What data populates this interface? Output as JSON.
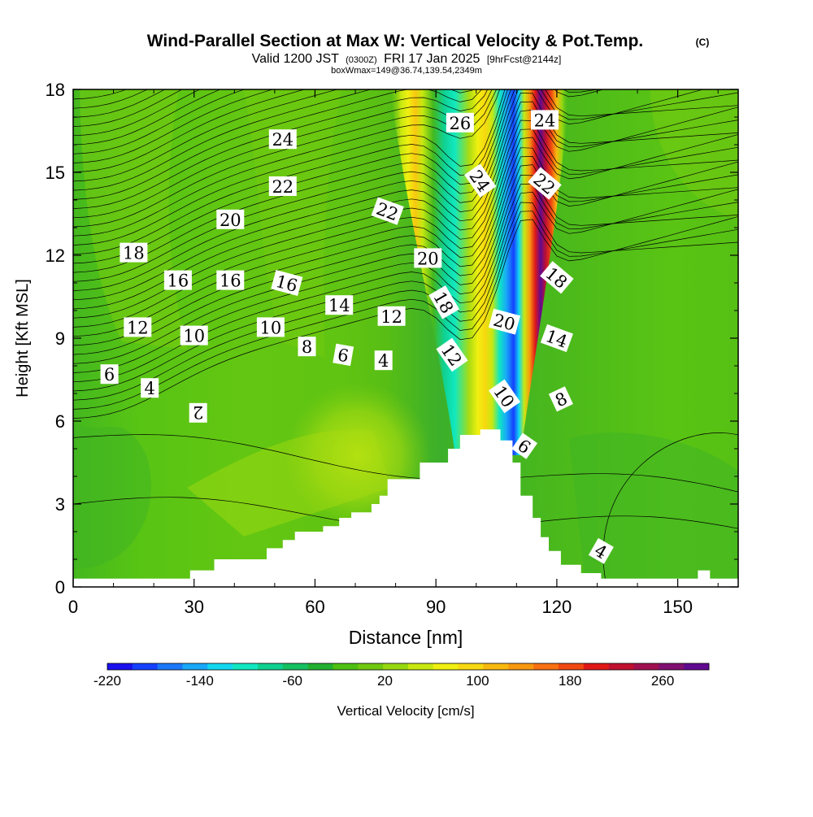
{
  "chart_data": {
    "type": "heatmap",
    "title": {
      "main": "Wind-Parallel Section at Max W: Vertical Velocity & Pot.Temp.",
      "copyright": "(C)",
      "valid_prefix": "Valid 1200 JST",
      "valid_utc": "(0300Z)",
      "valid_date": "FRI 17 Jan 2025",
      "forecast": "[9hrFcst@2144z]",
      "box": "boxWmax=149@36.74,139.54,2349m"
    },
    "x_axis": {
      "label": "Distance [nm]",
      "range": [
        0,
        165
      ],
      "ticks": [
        0,
        30,
        60,
        90,
        120,
        150
      ],
      "tick_labels": [
        "0",
        "30",
        "60",
        "90",
        "120",
        "150"
      ]
    },
    "y_axis": {
      "label": "Height [Kft MSL]",
      "range": [
        0,
        18
      ],
      "ticks": [
        0,
        3,
        6,
        9,
        12,
        15,
        18
      ],
      "tick_labels": [
        "0",
        "3",
        "6",
        "9",
        "12",
        "15",
        "18"
      ]
    },
    "colorbar": {
      "label": "Vertical Velocity [cm/s]",
      "tick_labels": [
        "-220",
        "-140",
        "-60",
        "20",
        "100",
        "180",
        "260"
      ],
      "colors": [
        "#1a10f0",
        "#1640ff",
        "#1a78f8",
        "#18a8f8",
        "#10d8f0",
        "#10e8c0",
        "#10d090",
        "#14c060",
        "#22b030",
        "#4cc010",
        "#70c810",
        "#98d810",
        "#c8e810",
        "#f0f010",
        "#f8d810",
        "#f8b810",
        "#f89810",
        "#f87010",
        "#f04810",
        "#e01818",
        "#c01030",
        "#a01050",
        "#801070",
        "#600a90"
      ],
      "min": -220,
      "max": 300,
      "step": 20
    },
    "terrain": [
      [
        0,
        0.3
      ],
      [
        29,
        0.3
      ],
      [
        29,
        0.6
      ],
      [
        35,
        0.6
      ],
      [
        35,
        1.0
      ],
      [
        48,
        1.0
      ],
      [
        48,
        1.4
      ],
      [
        52,
        1.4
      ],
      [
        52,
        1.7
      ],
      [
        55,
        1.7
      ],
      [
        55,
        2.0
      ],
      [
        62,
        2.0
      ],
      [
        62,
        2.2
      ],
      [
        66,
        2.2
      ],
      [
        66,
        2.5
      ],
      [
        69,
        2.5
      ],
      [
        69,
        2.7
      ],
      [
        74,
        2.7
      ],
      [
        74,
        3.0
      ],
      [
        76,
        3.0
      ],
      [
        76,
        3.3
      ],
      [
        78,
        3.3
      ],
      [
        78,
        3.9
      ],
      [
        86,
        3.9
      ],
      [
        86,
        4.5
      ],
      [
        93,
        4.5
      ],
      [
        93,
        5.0
      ],
      [
        96,
        5.0
      ],
      [
        96,
        5.5
      ],
      [
        101,
        5.5
      ],
      [
        101,
        5.7
      ],
      [
        106,
        5.7
      ],
      [
        106,
        5.3
      ],
      [
        109,
        5.3
      ],
      [
        109,
        4.5
      ],
      [
        111,
        4.5
      ],
      [
        111,
        3.3
      ],
      [
        114,
        3.3
      ],
      [
        114,
        2.5
      ],
      [
        116,
        2.5
      ],
      [
        116,
        1.8
      ],
      [
        118,
        1.8
      ],
      [
        118,
        1.3
      ],
      [
        121,
        1.3
      ],
      [
        121,
        0.8
      ],
      [
        126,
        0.8
      ],
      [
        126,
        0.5
      ],
      [
        131,
        0.5
      ],
      [
        131,
        0.3
      ],
      [
        155,
        0.3
      ],
      [
        155,
        0.6
      ],
      [
        158,
        0.6
      ],
      [
        158,
        0.3
      ],
      [
        165,
        0.3
      ]
    ],
    "isotherms": {
      "labels": [
        {
          "text": "24",
          "x": 52,
          "y": 16.2,
          "rot": 0
        },
        {
          "text": "22",
          "x": 52,
          "y": 14.5,
          "rot": 0
        },
        {
          "text": "20",
          "x": 39,
          "y": 13.3,
          "rot": 0
        },
        {
          "text": "18",
          "x": 15,
          "y": 12.1,
          "rot": 0
        },
        {
          "text": "16",
          "x": 26,
          "y": 11.1,
          "rot": 0
        },
        {
          "text": "16",
          "x": 39,
          "y": 11.1,
          "rot": 0
        },
        {
          "text": "16",
          "x": 53,
          "y": 11.0,
          "rot": 15
        },
        {
          "text": "14",
          "x": 66,
          "y": 10.2,
          "rot": 0
        },
        {
          "text": "12",
          "x": 16,
          "y": 9.4,
          "rot": 0
        },
        {
          "text": "10",
          "x": 30,
          "y": 9.1,
          "rot": 0
        },
        {
          "text": "10",
          "x": 49,
          "y": 9.4,
          "rot": 0
        },
        {
          "text": "8",
          "x": 58,
          "y": 8.7,
          "rot": 0
        },
        {
          "text": "6",
          "x": 67,
          "y": 8.4,
          "rot": 10
        },
        {
          "text": "4",
          "x": 77,
          "y": 8.2,
          "rot": 0
        },
        {
          "text": "12",
          "x": 79,
          "y": 9.8,
          "rot": 0
        },
        {
          "text": "6",
          "x": 9,
          "y": 7.7,
          "rot": 0
        },
        {
          "text": "4",
          "x": 19,
          "y": 7.2,
          "rot": 0
        },
        {
          "text": "2",
          "x": 31,
          "y": 6.3,
          "rot": 180
        },
        {
          "text": "22",
          "x": 78,
          "y": 13.6,
          "rot": 20
        },
        {
          "text": "20",
          "x": 88,
          "y": 11.9,
          "rot": 0
        },
        {
          "text": "18",
          "x": 92,
          "y": 10.3,
          "rot": 60
        },
        {
          "text": "12",
          "x": 94,
          "y": 8.4,
          "rot": 55
        },
        {
          "text": "26",
          "x": 96,
          "y": 16.8,
          "rot": 0
        },
        {
          "text": "24",
          "x": 101,
          "y": 14.7,
          "rot": 55
        },
        {
          "text": "20",
          "x": 107,
          "y": 9.6,
          "rot": 15
        },
        {
          "text": "10",
          "x": 107,
          "y": 6.9,
          "rot": 55
        },
        {
          "text": "6",
          "x": 112,
          "y": 5.1,
          "rot": 35
        },
        {
          "text": "24",
          "x": 117,
          "y": 16.9,
          "rot": 0
        },
        {
          "text": "22",
          "x": 117,
          "y": 14.6,
          "rot": 40
        },
        {
          "text": "18",
          "x": 120,
          "y": 11.2,
          "rot": 40
        },
        {
          "text": "14",
          "x": 120,
          "y": 9.0,
          "rot": 20
        },
        {
          "text": "8",
          "x": 121,
          "y": 6.8,
          "rot": -25
        },
        {
          "text": "4",
          "x": 131,
          "y": 1.3,
          "rot": 30
        }
      ]
    }
  }
}
